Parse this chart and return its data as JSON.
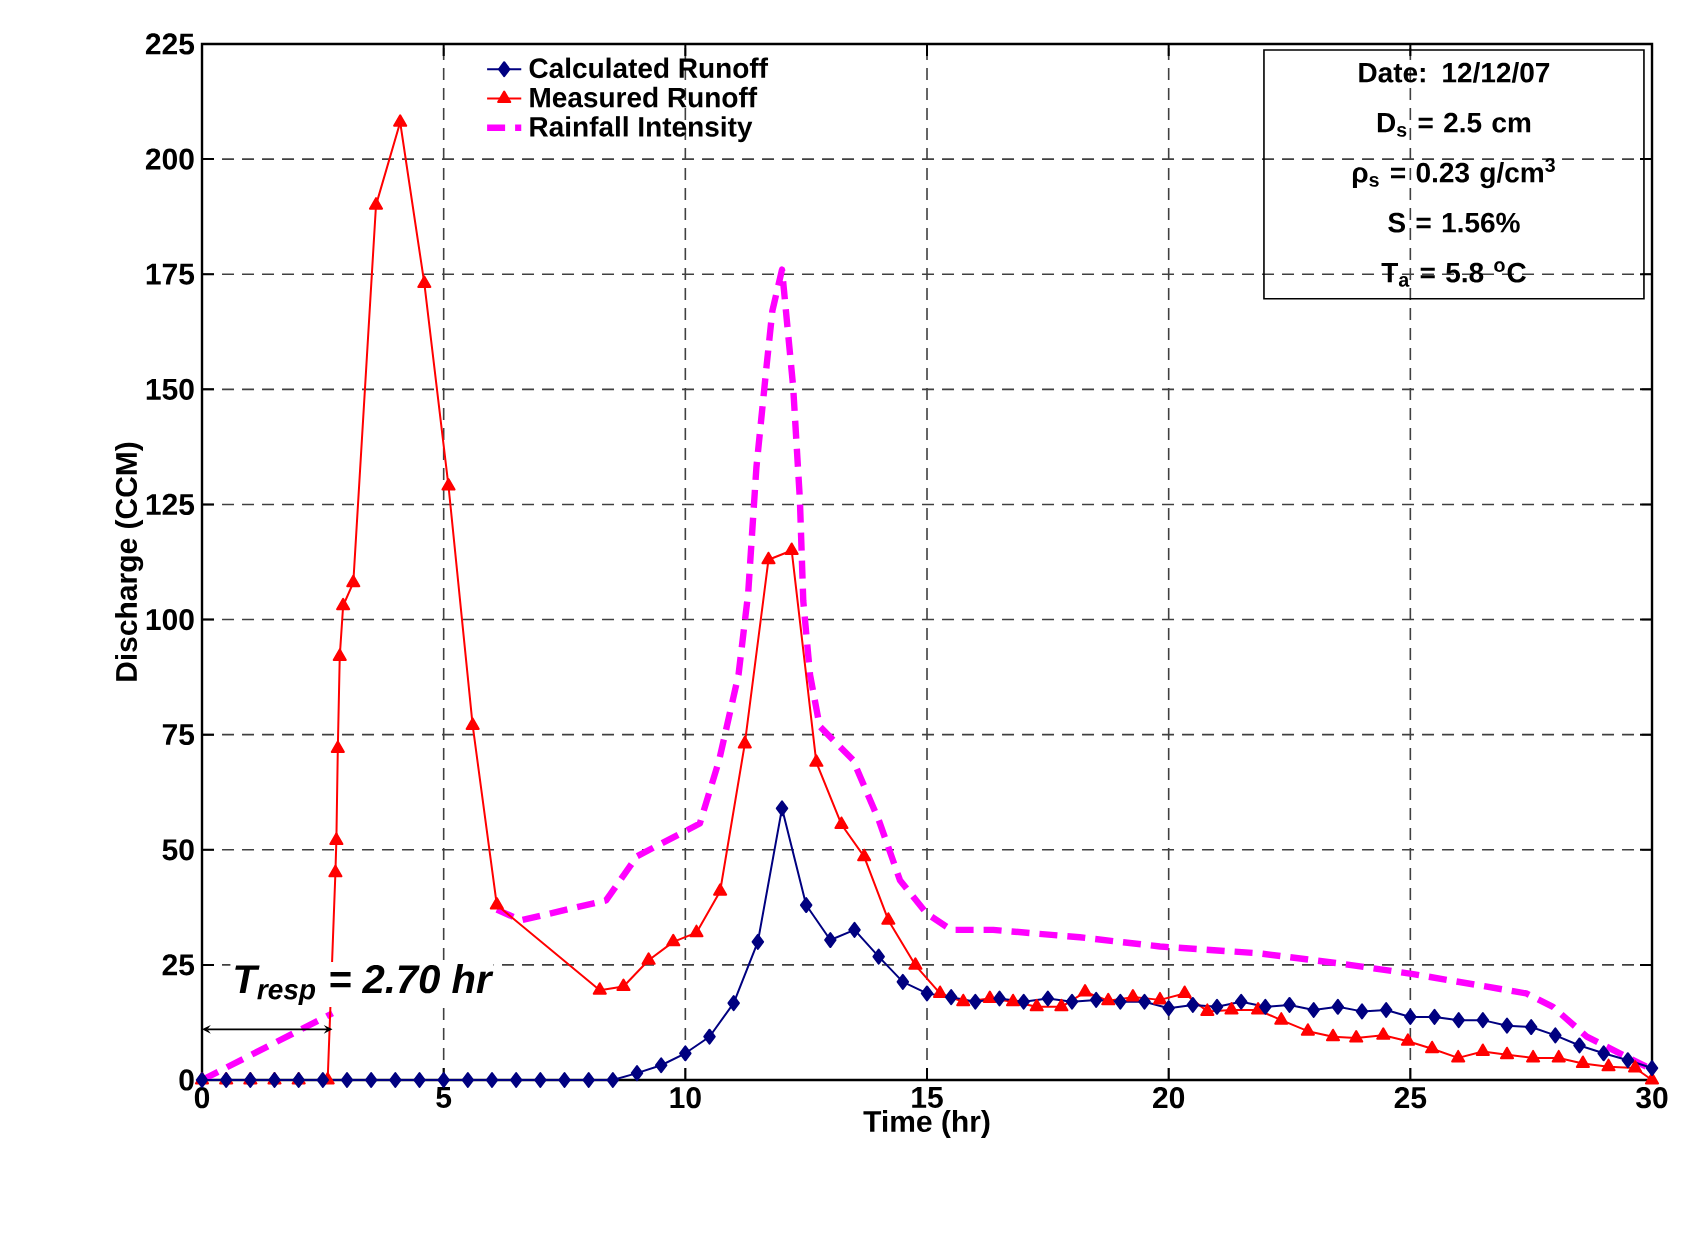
{
  "chart_data": {
    "type": "line",
    "xlabel": "Time (hr)",
    "ylabel": "Discharge (CCM)",
    "xlim": [
      0,
      30
    ],
    "ylim": [
      0,
      225
    ],
    "xticks": [
      0,
      5,
      10,
      15,
      20,
      25,
      30
    ],
    "yticks": [
      0,
      25,
      50,
      75,
      100,
      125,
      150,
      175,
      200,
      225
    ],
    "grid": true,
    "legend": "top",
    "series": [
      {
        "name": "Calculated Runoff",
        "color": "#000080",
        "marker": "diamond",
        "line_style": "solid",
        "x": [
          0,
          0.5,
          1,
          1.5,
          2,
          2.5,
          3,
          3.5,
          4,
          4.5,
          5,
          5.5,
          6,
          6.5,
          7,
          7.5,
          8,
          8.5,
          9,
          9.5,
          10,
          10.5,
          11,
          11.5,
          12,
          12.5,
          13,
          13.5,
          14,
          14.5,
          15,
          15.5,
          16,
          16.5,
          17,
          17.5,
          18,
          18.5,
          19,
          19.5,
          20,
          20.5,
          21,
          21.5,
          22,
          22.5,
          23,
          23.5,
          24,
          24.5,
          25,
          25.5,
          26,
          26.5,
          27,
          27.5,
          28,
          28.5,
          29,
          29.5,
          30
        ],
        "values": [
          0,
          0,
          0,
          0,
          0,
          0,
          0,
          0,
          0,
          0,
          0,
          0,
          0,
          0,
          0,
          0,
          0,
          0,
          1.5,
          3.2,
          5.8,
          9.4,
          16.7,
          30,
          59,
          38,
          30.4,
          32.6,
          26.8,
          21.3,
          18.8,
          18,
          17,
          17.7,
          17,
          17.7,
          17,
          17.4,
          17,
          17,
          15.6,
          16.3,
          15.9,
          17,
          15.9,
          16.3,
          15.2,
          15.9,
          14.9,
          15.2,
          13.7,
          13.7,
          13,
          13,
          11.8,
          11.5,
          9.7,
          7.5,
          5.8,
          4.3,
          2.6
        ]
      },
      {
        "name": "Measured Runoff",
        "color": "#ff0000",
        "marker": "triangle",
        "line_style": "solid",
        "x": [
          0,
          0.5,
          1,
          1.5,
          2,
          2.6,
          2.76,
          2.78,
          2.81,
          2.85,
          2.92,
          3.13,
          3.6,
          4.1,
          4.6,
          5.1,
          5.6,
          6.1,
          8.23,
          8.72,
          9.24,
          9.75,
          10.23,
          10.72,
          11.23,
          11.72,
          12.2,
          12.71,
          13.23,
          13.7,
          14.2,
          14.76,
          15.27,
          15.75,
          16.3,
          16.78,
          17.27,
          17.78,
          18.27,
          18.75,
          19.26,
          19.82,
          20.33,
          20.8,
          21.3,
          21.85,
          22.33,
          22.88,
          23.4,
          23.88,
          24.44,
          24.95,
          25.45,
          25.99,
          26.5,
          27,
          27.54,
          28.07,
          28.57,
          29.1,
          29.65,
          30
        ],
        "values": [
          0,
          0,
          0,
          0,
          0,
          0,
          45,
          52,
          72,
          92,
          103,
          108,
          190,
          208,
          173,
          129,
          77,
          38,
          19.5,
          20.3,
          26,
          30,
          32,
          41,
          73,
          113,
          115,
          69,
          55.5,
          48.5,
          34.7,
          24.9,
          18.8,
          17,
          17.7,
          17,
          15.9,
          15.9,
          19.1,
          17.2,
          18,
          17.4,
          18.8,
          14.9,
          15.2,
          15.2,
          13,
          10.6,
          9.4,
          9.1,
          9.7,
          8.4,
          6.8,
          4.8,
          6.2,
          5.5,
          4.8,
          4.8,
          3.6,
          2.9,
          2.6,
          0
        ]
      },
      {
        "name": "Rainfall Intensity",
        "color": "#ff00ff",
        "marker": "none",
        "line_style": "dashed",
        "x": [
          0,
          2.7,
          4,
          6.1,
          6.6,
          8.36,
          9,
          10.3,
          10.7,
          11.1,
          11.3,
          11.47,
          11.68,
          11.8,
          12,
          12.23,
          12.37,
          12.44,
          12.58,
          12.78,
          13.47,
          14,
          14.44,
          14.99,
          15.5,
          16.37,
          18.16,
          19.82,
          21.88,
          23.54,
          25.06,
          27.4,
          27.95,
          28.65,
          29.88
        ],
        "values": [
          0,
          14.5,
          null,
          37,
          34.7,
          39,
          48.6,
          55.7,
          69.5,
          88,
          105.7,
          133,
          155,
          167,
          176,
          150.6,
          126,
          104,
          88,
          76.8,
          69.5,
          56.5,
          43.4,
          36.2,
          32.6,
          32.6,
          31,
          29,
          27.5,
          25.3,
          23,
          18.8,
          15.9,
          9.4,
          2.9
        ]
      }
    ],
    "annotations": [
      "Date: 12/12/07",
      "D$_{s}$ =  2.5 cm",
      "ρ$_{s}$ = 0.23 g/cm$^{3}$",
      "S = 1.56%",
      "T$_{a}$ = 5.8 $^{o}$C",
      {
        "text": "T$_{resp}$ = 2.70 hr",
        "x": 2.7,
        "y": 11
      }
    ]
  }
}
